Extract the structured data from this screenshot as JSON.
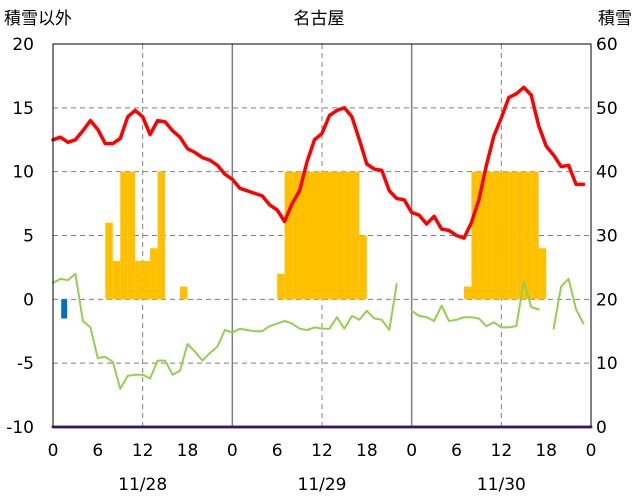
{
  "chart_data": {
    "type": "line",
    "title": "名古屋",
    "y_left_label": "積雪以外",
    "y_right_label": "積雪",
    "ylim_left": [
      -10,
      20
    ],
    "ylim_right": [
      0,
      60
    ],
    "y_left_ticks": [
      "20",
      "15",
      "10",
      "5",
      "0",
      "-5",
      "-10"
    ],
    "y_right_ticks": [
      "60",
      "50",
      "40",
      "30",
      "20",
      "10",
      "0"
    ],
    "x_tick_labels": [
      "0",
      "6",
      "12",
      "18",
      "0",
      "6",
      "12",
      "18",
      "0",
      "6",
      "12",
      "18",
      "0"
    ],
    "day_labels": [
      "11/28",
      "11/29",
      "11/30"
    ],
    "x_range_hours": [
      0,
      72
    ],
    "grid": "dashed at 12h, solid at day boundaries, dashed horizontal",
    "colors": {
      "temperature": "#ff0000",
      "sunshine": "#ffc000",
      "wind": "#92d050",
      "precipitation": "#0070c0",
      "snow_depth": "#7030a0"
    },
    "series": [
      {
        "key": "temperature",
        "axis": "left",
        "x": [
          0,
          1,
          2,
          3,
          4,
          5,
          6,
          7,
          8,
          9,
          10,
          11,
          12,
          13,
          14,
          15,
          16,
          17,
          18,
          19,
          20,
          21,
          22,
          23,
          24,
          25,
          26,
          27,
          28,
          29,
          30,
          31,
          32,
          33,
          34,
          35,
          36,
          37,
          38,
          39,
          40,
          41,
          42,
          43,
          44,
          45,
          46,
          47,
          48,
          49,
          50,
          51,
          52,
          53,
          54,
          55,
          56,
          57,
          58,
          59,
          60,
          61,
          62,
          63,
          64,
          65,
          66,
          67,
          68,
          69,
          70,
          71
        ],
        "values": [
          12.5,
          12.7,
          12.3,
          12.5,
          13.2,
          14.0,
          13.3,
          12.2,
          12.2,
          12.6,
          14.3,
          14.8,
          14.3,
          12.9,
          14.0,
          13.9,
          13.2,
          12.7,
          11.8,
          11.5,
          11.1,
          10.9,
          10.5,
          9.8,
          9.4,
          8.7,
          8.5,
          8.3,
          8.1,
          7.4,
          7.0,
          6.1,
          7.5,
          8.5,
          10.8,
          12.5,
          13.0,
          14.4,
          14.8,
          15.0,
          14.3,
          12.5,
          10.6,
          10.2,
          10.1,
          8.5,
          7.9,
          7.8,
          6.8,
          6.6,
          5.9,
          6.5,
          5.5,
          5.4,
          5.0,
          4.8,
          6.0,
          7.8,
          10.5,
          12.8,
          14.2,
          15.8,
          16.1,
          16.6,
          16.0,
          13.6,
          12.0,
          11.3,
          10.4,
          10.5,
          9.0,
          9.0
        ]
      },
      {
        "key": "wind",
        "axis": "left",
        "x": [
          0,
          1,
          2,
          3,
          4,
          5,
          6,
          7,
          8,
          9,
          10,
          11,
          12,
          13,
          14,
          15,
          16,
          17,
          18,
          19,
          20,
          21,
          22,
          23,
          24,
          25,
          26,
          27,
          28,
          29,
          30,
          31,
          32,
          33,
          34,
          35,
          36,
          37,
          38,
          39,
          40,
          41,
          42,
          43,
          44,
          45,
          46,
          47,
          48,
          49,
          50,
          51,
          52,
          53,
          54,
          55,
          56,
          57,
          58,
          59,
          60,
          61,
          62,
          63,
          64,
          65,
          66,
          67,
          68,
          69,
          70,
          71
        ],
        "values": [
          1.3,
          1.6,
          1.5,
          2.0,
          -1.7,
          -2.2,
          -4.6,
          -4.5,
          -4.9,
          -7.0,
          -6.0,
          -5.9,
          -5.9,
          -6.2,
          -4.8,
          -4.8,
          -5.9,
          -5.6,
          -3.5,
          -4.1,
          -4.8,
          -4.2,
          -3.7,
          -2.4,
          -2.6,
          -2.3,
          -2.4,
          -2.5,
          -2.5,
          -2.1,
          -1.9,
          -1.7,
          -1.9,
          -2.3,
          -2.4,
          -2.2,
          -2.3,
          -2.3,
          -1.4,
          -2.3,
          -1.3,
          -1.6,
          -0.9,
          -1.5,
          -1.6,
          -2.4,
          1.2,
          null,
          -0.9,
          -1.3,
          -1.4,
          -1.7,
          -0.5,
          -1.7,
          -1.6,
          -1.4,
          -1.4,
          -1.5,
          -2.1,
          -1.8,
          -2.2,
          -2.2,
          -2.1,
          1.4,
          -0.6,
          -0.8,
          null,
          -2.3,
          1.0,
          1.6,
          -0.8,
          -1.9
        ]
      },
      {
        "key": "snow_depth",
        "axis": "right",
        "x": [
          0,
          72
        ],
        "values": [
          0,
          0
        ]
      }
    ],
    "bars": [
      {
        "key": "sunshine",
        "axis": "left",
        "x": [
          7,
          8,
          9,
          10,
          11,
          12,
          13,
          14,
          15,
          17,
          30,
          31,
          32,
          33,
          34,
          35,
          36,
          37,
          38,
          39,
          40,
          41,
          55,
          56,
          57,
          58,
          59,
          60,
          61,
          62,
          63,
          64,
          65
        ],
        "values": [
          6,
          3,
          10,
          10,
          3,
          3,
          4,
          10,
          0,
          1,
          2,
          10,
          10,
          10,
          10,
          10,
          10,
          10,
          10,
          10,
          10,
          5,
          1,
          10,
          10,
          10,
          10,
          10,
          10,
          10,
          10,
          10,
          4
        ]
      },
      {
        "key": "precipitation",
        "axis": "left",
        "x": [
          1.5
        ],
        "values": [
          -1.5
        ]
      }
    ]
  }
}
